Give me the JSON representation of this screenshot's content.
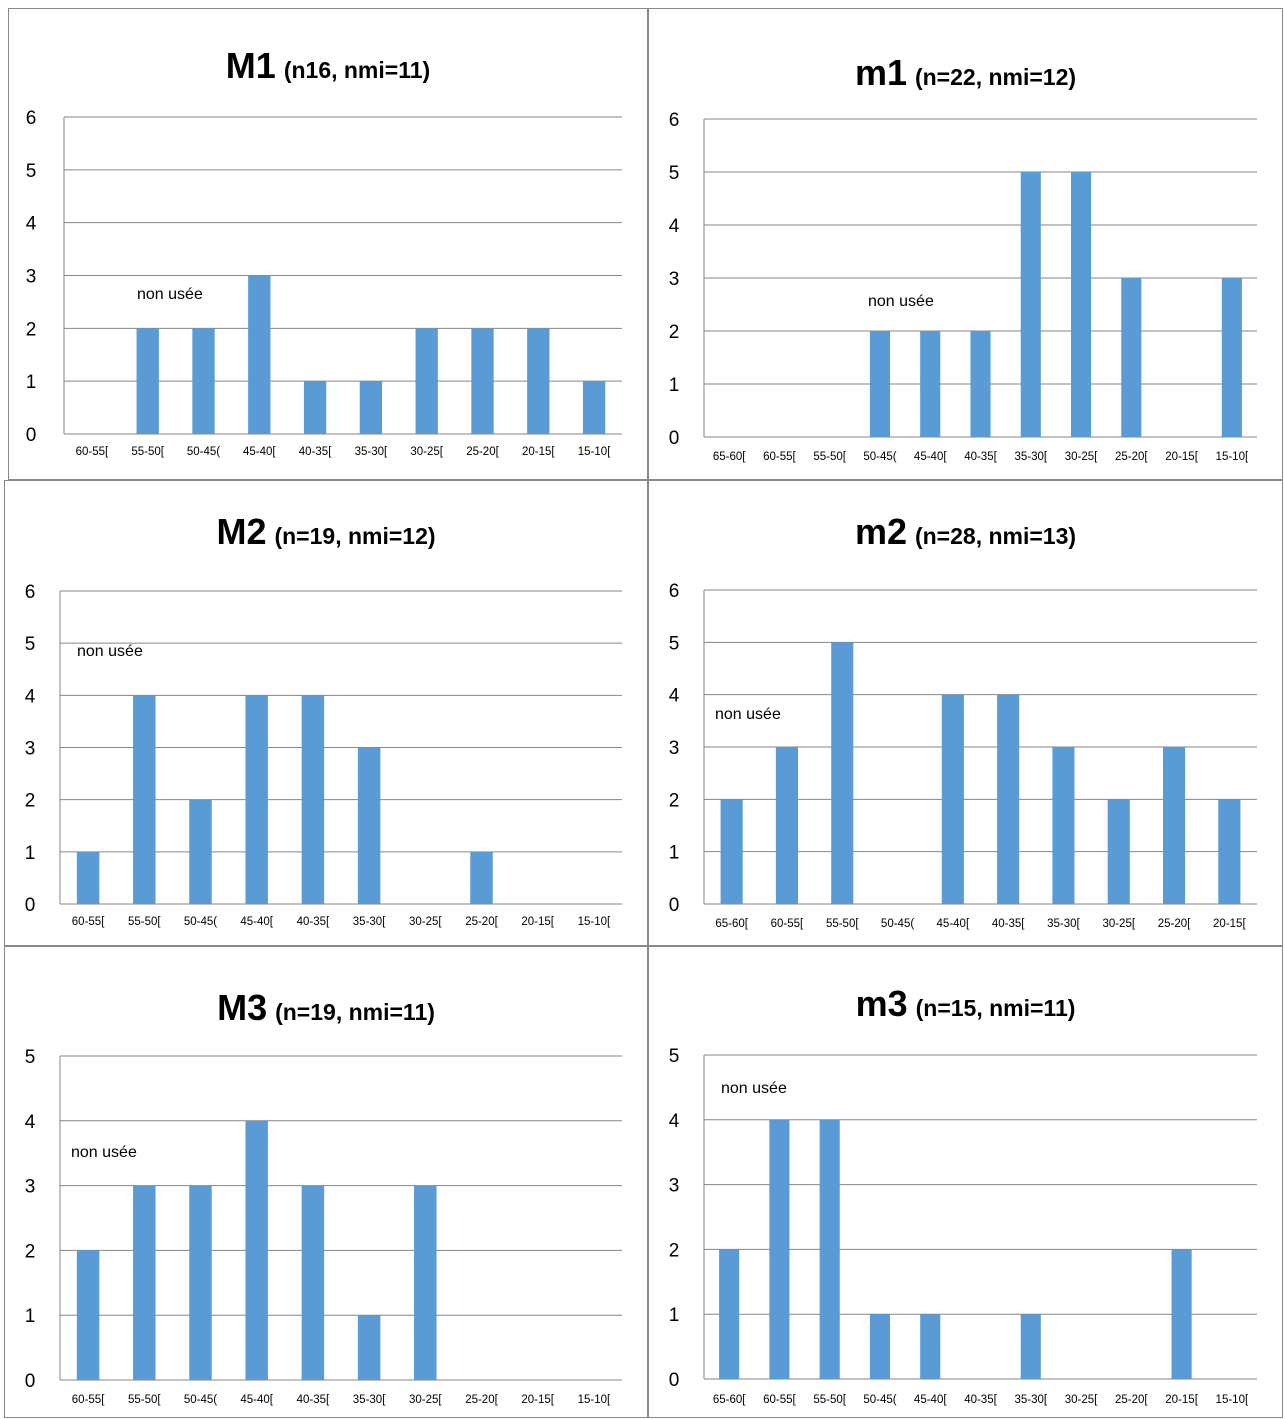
{
  "chart_data": [
    {
      "type": "bar",
      "title": "M1",
      "subtitle": "(n16, nmi=11)",
      "categories": [
        "60-55[",
        "55-50[",
        "50-45(",
        "45-40[",
        "40-35[",
        "35-30[",
        "30-25[",
        "25-20[",
        "20-15[",
        "15-10["
      ],
      "values": [
        0,
        2,
        2,
        3,
        1,
        1,
        2,
        2,
        2,
        1
      ],
      "ylim": [
        0,
        6
      ],
      "yticks": [
        "0",
        "1",
        "2",
        "3",
        "4",
        "5",
        "6"
      ],
      "annotation": "non usée",
      "grid": true,
      "color": "#5b9bd5"
    },
    {
      "type": "bar",
      "title": "m1",
      "subtitle": "(n=22, nmi=12)",
      "categories": [
        "65-60[",
        "60-55[",
        "55-50[",
        "50-45(",
        "45-40[",
        "40-35[",
        "35-30[",
        "30-25[",
        "25-20[",
        "20-15[",
        "15-10["
      ],
      "values": [
        0,
        0,
        0,
        2,
        2,
        2,
        5,
        5,
        3,
        0,
        3
      ],
      "ylim": [
        0,
        6
      ],
      "yticks": [
        "0",
        "1",
        "2",
        "3",
        "4",
        "5",
        "6"
      ],
      "annotation": "non usée",
      "grid": true,
      "color": "#5b9bd5"
    },
    {
      "type": "bar",
      "title": "M2",
      "subtitle": "(n=19, nmi=12)",
      "categories": [
        "60-55[",
        "55-50[",
        "50-45(",
        "45-40[",
        "40-35[",
        "35-30[",
        "30-25[",
        "25-20[",
        "20-15[",
        "15-10["
      ],
      "values": [
        1,
        4,
        2,
        4,
        4,
        3,
        0,
        1,
        0,
        0
      ],
      "ylim": [
        0,
        6
      ],
      "yticks": [
        "0",
        "1",
        "2",
        "3",
        "4",
        "5",
        "6"
      ],
      "annotation": "non usée",
      "grid": true,
      "color": "#5b9bd5"
    },
    {
      "type": "bar",
      "title": "m2",
      "subtitle": "(n=28, nmi=13)",
      "categories": [
        "65-60[",
        "60-55[",
        "55-50[",
        "50-45(",
        "45-40[",
        "40-35[",
        "35-30[",
        "30-25[",
        "25-20[",
        "20-15["
      ],
      "values": [
        2,
        3,
        5,
        0,
        4,
        4,
        3,
        2,
        3,
        2
      ],
      "ylim": [
        0,
        6
      ],
      "yticks": [
        "0",
        "1",
        "2",
        "3",
        "4",
        "5",
        "6"
      ],
      "annotation": "non usée",
      "grid": true,
      "color": "#5b9bd5"
    },
    {
      "type": "bar",
      "title": "M3",
      "subtitle": "(n=19, nmi=11)",
      "categories": [
        "60-55[",
        "55-50[",
        "50-45(",
        "45-40[",
        "40-35[",
        "35-30[",
        "30-25[",
        "25-20[",
        "20-15[",
        "15-10["
      ],
      "values": [
        2,
        3,
        3,
        4,
        3,
        1,
        3,
        0,
        0,
        0
      ],
      "ylim": [
        0,
        5
      ],
      "yticks": [
        "0",
        "1",
        "2",
        "3",
        "4",
        "5"
      ],
      "annotation": "non usée",
      "grid": true,
      "color": "#5b9bd5"
    },
    {
      "type": "bar",
      "title": "m3",
      "subtitle": "(n=15, nmi=11)",
      "categories": [
        "65-60[",
        "60-55[",
        "55-50[",
        "50-45(",
        "45-40[",
        "40-35[",
        "35-30[",
        "30-25[",
        "25-20[",
        "20-15[",
        "15-10["
      ],
      "values": [
        2,
        4,
        4,
        1,
        1,
        0,
        1,
        0,
        0,
        2,
        0
      ],
      "ylim": [
        0,
        5
      ],
      "yticks": [
        "0",
        "1",
        "2",
        "3",
        "4",
        "5"
      ],
      "annotation": "non usée",
      "grid": true,
      "color": "#5b9bd5"
    }
  ]
}
